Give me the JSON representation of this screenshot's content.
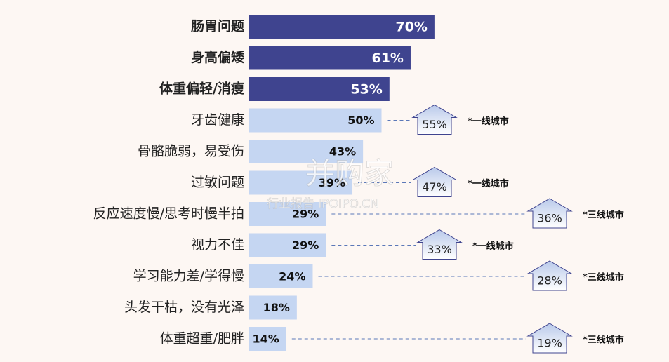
{
  "chart_data": {
    "type": "bar",
    "orientation": "horizontal",
    "categories": [
      "肠胃问题",
      "身高偏矮",
      "体重偏轻/消瘦",
      "牙齿健康",
      "骨骼脆弱，易受伤",
      "过敏问题",
      "反应速度慢/思考时慢半拍",
      "视力不佳",
      "学习能力差/学得慢",
      "头发干枯，没有光泽",
      "体重超重/肥胖"
    ],
    "values": [
      70,
      61,
      53,
      50,
      43,
      39,
      29,
      29,
      24,
      18,
      14
    ],
    "value_labels": [
      "70%",
      "61%",
      "53%",
      "50%",
      "43%",
      "39%",
      "29%",
      "29%",
      "24%",
      "18%",
      "14%"
    ],
    "colors": [
      "#3f448f",
      "#3f448f",
      "#3f448f",
      "#c5d6f2",
      "#c5d6f2",
      "#c5d6f2",
      "#c5d6f2",
      "#c5d6f2",
      "#c5d6f2",
      "#c5d6f2",
      "#c5d6f2"
    ],
    "xlim": [
      0,
      100
    ],
    "callouts": [
      {
        "category": 3,
        "value": 55,
        "value_label": "55%",
        "note": "*一线城市"
      },
      {
        "category": 5,
        "value": 47,
        "value_label": "47%",
        "note": "*一线城市"
      },
      {
        "category": 6,
        "value": 36,
        "value_label": "36%",
        "note": "*三线城市"
      },
      {
        "category": 7,
        "value": 33,
        "value_label": "33%",
        "note": "*一线城市"
      },
      {
        "category": 8,
        "value": 28,
        "value_label": "28%",
        "note": "*三线城市"
      },
      {
        "category": 10,
        "value": 19,
        "value_label": "19%",
        "note": "*三线城市"
      }
    ],
    "watermark": {
      "title": "并购家",
      "subtitle": "行业报告 IPOIPO.CN"
    }
  }
}
